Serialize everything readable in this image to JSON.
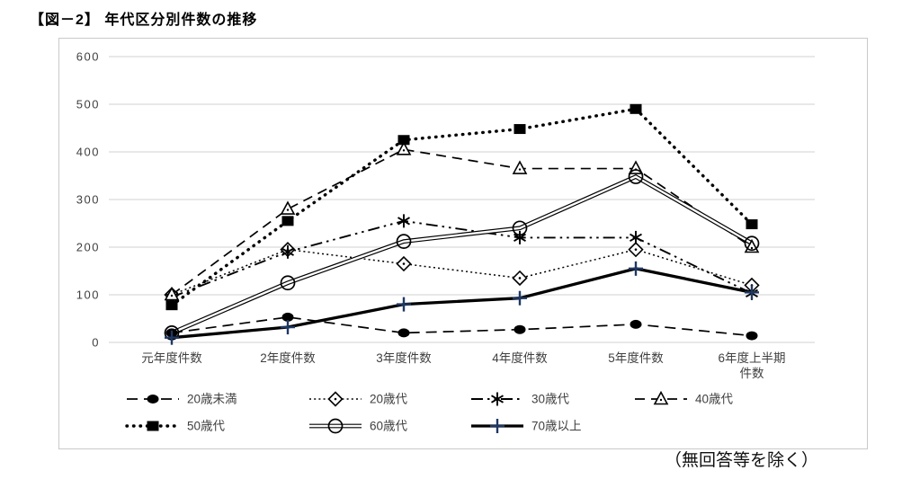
{
  "chart_data": {
    "type": "line",
    "title": "【図－2】 年代区分別件数の推移",
    "caption": "（無回答等を除く）",
    "categories": [
      "元年度件数",
      "2年度件数",
      "3年度件数",
      "4年度件数",
      "5年度件数",
      "6年度上半期\n件数"
    ],
    "ylim": [
      0,
      600
    ],
    "ytick_step": 100,
    "grid": true,
    "legend_position": "bottom",
    "colors": {
      "series_default": "#000000",
      "plus_marker": "#1f3864",
      "gridline": "#d9d9d9",
      "axis_text": "#404040",
      "legend_text": "#3f3f3f"
    },
    "series": [
      {
        "name": "20歳未満",
        "marker": "filled-circle",
        "line": "dashed",
        "values": [
          20,
          53,
          20,
          27,
          38,
          14
        ]
      },
      {
        "name": "20歳代",
        "marker": "open-diamond",
        "line": "dotted",
        "values": [
          100,
          195,
          165,
          135,
          195,
          120
        ]
      },
      {
        "name": "30歳代",
        "marker": "asterisk",
        "line": "dashdotdot",
        "values": [
          95,
          190,
          255,
          220,
          220,
          103
        ]
      },
      {
        "name": "40歳代",
        "marker": "open-triangle",
        "line": "longdash",
        "values": [
          100,
          280,
          405,
          365,
          365,
          200
        ]
      },
      {
        "name": "50歳代",
        "marker": "filled-square",
        "line": "bold-dotted",
        "values": [
          78,
          255,
          425,
          448,
          490,
          248
        ]
      },
      {
        "name": "60歳代",
        "marker": "open-circle",
        "line": "double",
        "values": [
          20,
          125,
          212,
          240,
          348,
          208
        ]
      },
      {
        "name": "70歳以上",
        "marker": "plus",
        "line": "solid-thick",
        "values": [
          10,
          32,
          80,
          93,
          155,
          105
        ]
      }
    ],
    "legend_rows": [
      [
        0,
        1,
        2,
        3
      ],
      [
        4,
        5,
        6
      ]
    ]
  }
}
